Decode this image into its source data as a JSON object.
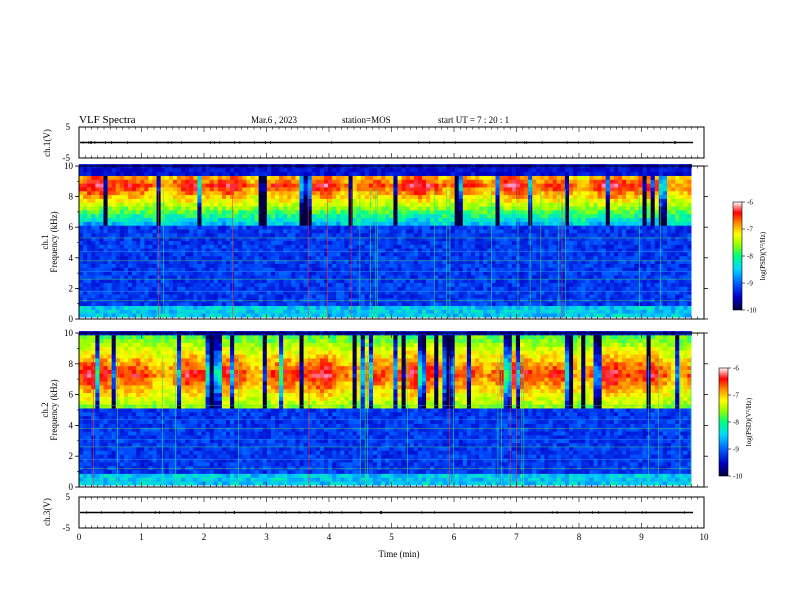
{
  "header": {
    "title": "VLF Spectra",
    "date": "Mar.6  , 2023",
    "station": "station=MOS",
    "start": "start  UT  =   7 : 20 : 1"
  },
  "chart_data": [
    {
      "type": "line",
      "name": "ch1-waveform",
      "ylabel": "ch.1(V)",
      "ylim": [
        -5,
        5
      ],
      "yticks": [
        "5",
        "-5"
      ],
      "xlim": [
        0,
        10
      ],
      "trace_level": 0
    },
    {
      "type": "heatmap",
      "name": "ch1-spectrogram",
      "ylabel": "ch.1\nFrequency (kHz)",
      "ylabel_line1": "ch.1",
      "ylabel_line2": "Frequency (kHz)",
      "ylim": [
        0,
        10
      ],
      "yticks": [
        "0",
        "2",
        "4",
        "6",
        "8",
        "10"
      ],
      "xlim": [
        0,
        10
      ],
      "data_end_min": 9.8,
      "emission_band_khz": [
        6.0,
        9.3
      ],
      "emission_peak_khz": 8.6,
      "colorbar": {
        "label": "log(PSD)(V²/Hz)",
        "range": [
          -10,
          -6
        ],
        "ticks": [
          "-6",
          "-7",
          "-8",
          "-9",
          "-10"
        ]
      }
    },
    {
      "type": "heatmap",
      "name": "ch2-spectrogram",
      "ylabel": "ch.2\nFrequency (kHz)",
      "ylabel_line1": "ch.2",
      "ylabel_line2": "Frequency (kHz)",
      "ylim": [
        0,
        10
      ],
      "yticks": [
        "0",
        "2",
        "4",
        "6",
        "8",
        "10"
      ],
      "xlim": [
        0,
        10
      ],
      "data_end_min": 9.8,
      "emission_band_khz": [
        5.0,
        9.8
      ],
      "emission_peak_khz": 7.2,
      "colorbar": {
        "label": "log(PSD)(V²/Hz)",
        "range": [
          -10,
          -6
        ],
        "ticks": [
          "-6",
          "-7",
          "-8",
          "-9",
          "-10"
        ]
      }
    },
    {
      "type": "line",
      "name": "ch3-waveform",
      "ylabel": "ch.3(V)",
      "ylim": [
        -5,
        5
      ],
      "yticks": [
        "5",
        "-5"
      ],
      "xlim": [
        0,
        10
      ],
      "trace_level": 0
    }
  ],
  "xaxis": {
    "label": "Time  (min)",
    "ticks": [
      "0",
      "1",
      "2",
      "3",
      "4",
      "5",
      "6",
      "7",
      "8",
      "9",
      "10"
    ]
  },
  "colors": {
    "colormap": [
      "#000040",
      "#0000c8",
      "#0050ff",
      "#00c8ff",
      "#00ff96",
      "#96ff00",
      "#ffff00",
      "#ff8c00",
      "#ff0000",
      "#ff96c8",
      "#ffffff"
    ],
    "background_dark": "#000020",
    "frame": "#000000"
  }
}
